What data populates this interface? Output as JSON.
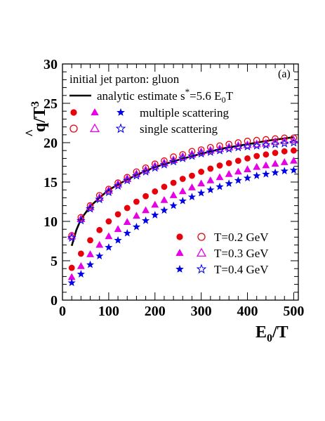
{
  "chart_data": {
    "type": "scatter",
    "panel_label": "(a)",
    "xlabel_main": "E",
    "xlabel_sub": "0",
    "xlabel_tail": "/T",
    "ylabel_hat": "^",
    "ylabel_main": "q/T",
    "ylabel_sup": "3",
    "xlim": [
      0,
      510
    ],
    "ylim": [
      0,
      30
    ],
    "x_ticks": [
      "0",
      "100",
      "200",
      "300",
      "400",
      "500"
    ],
    "y_ticks": [
      "0",
      "5",
      "10",
      "15",
      "20",
      "25",
      "30"
    ],
    "legend_top": {
      "title": "initial jet parton: gluon",
      "analytic_label": "analytic estimate s",
      "analytic_sup": "*",
      "analytic_tail": "=5.6 E",
      "analytic_sub": "0",
      "analytic_end": "T",
      "multiple_label": "multiple scattering",
      "single_label": "single scattering"
    },
    "legend_bottom": [
      {
        "label": "T=0.2 GeV",
        "marker": "circle",
        "color": "#e8000b"
      },
      {
        "label": "T=0.3 GeV",
        "marker": "triangle",
        "color": "#e600e6"
      },
      {
        "label": "T=0.4 GeV",
        "marker": "star",
        "color": "#0000e6"
      }
    ],
    "x": [
      20,
      40,
      60,
      80,
      100,
      120,
      140,
      160,
      180,
      200,
      220,
      240,
      260,
      280,
      300,
      320,
      340,
      360,
      380,
      400,
      420,
      440,
      460,
      480,
      500
    ],
    "series": [
      {
        "name": "T=0.2 GeV",
        "scattering": "multiple scattering",
        "marker": "circle",
        "filled": true,
        "color": "#e8000b",
        "values": [
          4.1,
          5.9,
          7.6,
          8.9,
          10.0,
          10.9,
          11.7,
          12.5,
          13.2,
          13.8,
          14.4,
          14.9,
          15.4,
          15.8,
          16.3,
          16.7,
          17.1,
          17.4,
          17.7,
          18.0,
          18.3,
          18.5,
          18.7,
          18.9,
          19.0
        ]
      },
      {
        "name": "T=0.3 GeV",
        "scattering": "multiple scattering",
        "marker": "triangle",
        "filled": true,
        "color": "#e600e6",
        "values": [
          2.9,
          4.3,
          5.8,
          7.0,
          8.1,
          9.0,
          9.9,
          10.7,
          11.4,
          12.1,
          12.7,
          13.3,
          13.8,
          14.3,
          14.8,
          15.2,
          15.6,
          16.0,
          16.3,
          16.6,
          16.9,
          17.1,
          17.3,
          17.5,
          17.7
        ]
      },
      {
        "name": "T=0.4 GeV",
        "scattering": "multiple scattering",
        "marker": "star",
        "filled": true,
        "color": "#0000e6",
        "values": [
          2.2,
          3.3,
          4.5,
          5.6,
          6.7,
          7.6,
          8.5,
          9.3,
          10.1,
          10.8,
          11.4,
          12.0,
          12.6,
          13.1,
          13.6,
          14.0,
          14.4,
          14.8,
          15.2,
          15.5,
          15.8,
          16.0,
          16.2,
          16.4,
          16.5
        ]
      },
      {
        "name": "T=0.2 GeV",
        "scattering": "single scattering",
        "marker": "circle",
        "filled": false,
        "color": "#e8000b",
        "values": [
          8.2,
          10.5,
          12.0,
          13.3,
          14.1,
          14.9,
          15.6,
          16.3,
          16.8,
          17.3,
          17.7,
          18.2,
          18.5,
          18.9,
          19.1,
          19.4,
          19.6,
          19.8,
          20.0,
          20.2,
          20.3,
          20.4,
          20.5,
          20.6,
          20.6
        ]
      },
      {
        "name": "T=0.3 GeV",
        "scattering": "single scattering",
        "marker": "triangle",
        "filled": false,
        "color": "#e600e6",
        "values": [
          8.1,
          10.3,
          11.8,
          13.0,
          13.9,
          14.7,
          15.4,
          16.0,
          16.5,
          17.0,
          17.4,
          17.8,
          18.2,
          18.5,
          18.8,
          19.0,
          19.2,
          19.4,
          19.6,
          19.7,
          19.8,
          19.9,
          20.1,
          20.2,
          20.3
        ]
      },
      {
        "name": "T=0.4 GeV",
        "scattering": "single scattering",
        "marker": "star",
        "filled": false,
        "color": "#0000e6",
        "values": [
          7.9,
          10.1,
          11.6,
          12.8,
          13.7,
          14.5,
          15.2,
          15.8,
          16.3,
          16.8,
          17.2,
          17.6,
          18.0,
          18.3,
          18.6,
          18.8,
          19.0,
          19.2,
          19.4,
          19.5,
          19.6,
          19.7,
          19.8,
          19.9,
          20.0
        ]
      }
    ],
    "analytic_curve": {
      "color": "#000000",
      "x": [
        20,
        30,
        40,
        60,
        80,
        100,
        130,
        160,
        200,
        250,
        300,
        350,
        400,
        450,
        500
      ],
      "values": [
        6.9,
        8.9,
        10.3,
        11.9,
        13.0,
        14.0,
        15.0,
        15.9,
        16.9,
        17.8,
        18.6,
        19.3,
        19.8,
        20.3,
        20.7
      ]
    }
  }
}
